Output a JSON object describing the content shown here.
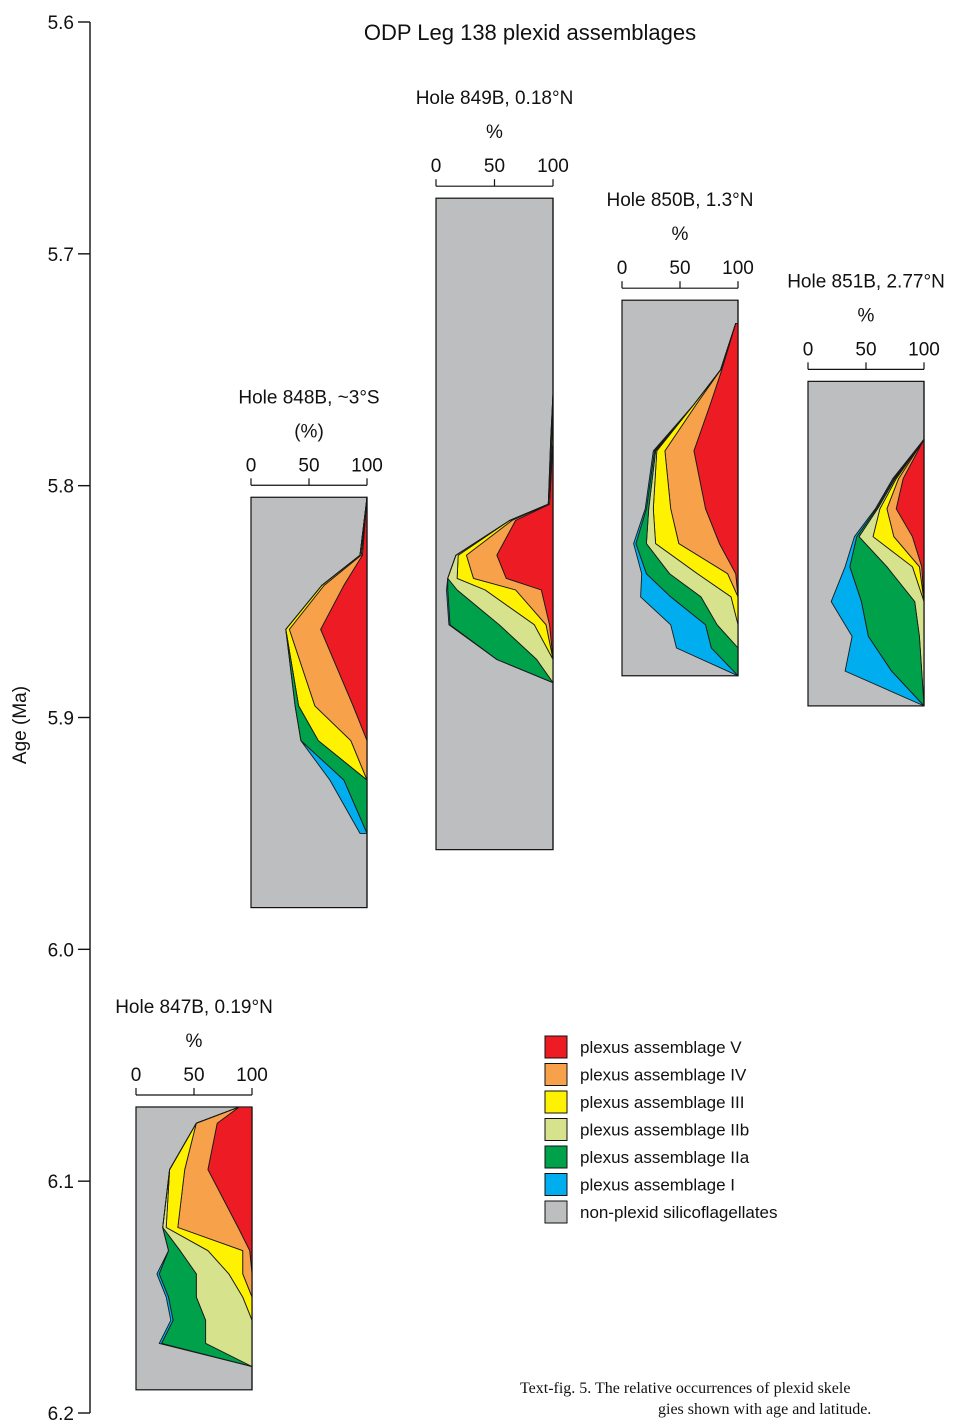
{
  "chart_data": {
    "type": "area",
    "title": "ODP Leg 138 plexid assemblages",
    "ylabel": "Age (Ma)",
    "ylim": [
      5.6,
      6.2
    ],
    "yticks": [
      "5.6",
      "5.7",
      "5.8",
      "5.9",
      "6.0",
      "6.1",
      "6.2"
    ],
    "grid": false,
    "legend_position": "bottom-right",
    "colors": {
      "V": "#ed1c24",
      "IV": "#f7a24b",
      "III": "#fff200",
      "IIb": "#d6e38c",
      "IIa": "#00a14b",
      "I": "#00aeef",
      "non": "#bcbec0"
    },
    "legend": [
      {
        "key": "V",
        "label": "plexus assemblage V"
      },
      {
        "key": "IV",
        "label": "plexus assemblage IV"
      },
      {
        "key": "III",
        "label": "plexus assemblage III"
      },
      {
        "key": "IIb",
        "label": "plexus assemblage IIb"
      },
      {
        "key": "IIa",
        "label": "plexus assemblage IIa"
      },
      {
        "key": "I",
        "label": "plexus assemblage I"
      },
      {
        "key": "non",
        "label": "non-plexid silicoflagellates"
      }
    ],
    "order": [
      "V",
      "IV",
      "III",
      "IIb",
      "IIa",
      "I"
    ],
    "panels": [
      {
        "name": "Hole 848B, ~3°S",
        "unit": "(%)",
        "xticks": [
          "0",
          "50",
          "100"
        ],
        "age_range": [
          5.805,
          5.982
        ],
        "ages": [
          5.805,
          5.83,
          5.843,
          5.862,
          5.895,
          5.91,
          5.927,
          5.95
        ],
        "V": [
          0,
          4,
          20,
          40,
          12,
          0,
          0,
          0
        ],
        "IV": [
          0,
          1,
          17,
          27,
          33,
          14,
          0,
          0
        ],
        "III": [
          0,
          1,
          2,
          3,
          14,
          28,
          0,
          0
        ],
        "IIb": [
          0,
          0,
          0,
          0,
          0,
          0,
          0,
          0
        ],
        "IIa": [
          0,
          0,
          0,
          0,
          3,
          15,
          20,
          0
        ],
        "I": [
          0,
          0,
          0,
          0,
          0,
          0,
          12,
          6
        ]
      },
      {
        "name": "Hole 849B, 0.18°N",
        "unit": "%",
        "xticks": [
          "0",
          "50",
          "100"
        ],
        "age_range": [
          5.676,
          5.957
        ],
        "ages": [
          5.76,
          5.78,
          5.808,
          5.815,
          5.83,
          5.84,
          5.845,
          5.86,
          5.875,
          5.885
        ],
        "V": [
          0,
          0,
          3,
          32,
          48,
          40,
          10,
          3,
          0,
          0
        ],
        "IV": [
          0,
          0,
          1,
          3,
          26,
          28,
          22,
          3,
          0,
          0
        ],
        "III": [
          0,
          1,
          0,
          2,
          7,
          14,
          26,
          10,
          0,
          0
        ],
        "IIb": [
          0,
          0,
          0,
          0,
          2,
          8,
          24,
          30,
          14,
          0
        ],
        "IIa": [
          0,
          1,
          0,
          0,
          0,
          0,
          8,
          42,
          34,
          0
        ],
        "I": [
          0,
          0,
          0,
          0,
          0,
          0,
          1,
          1,
          0,
          0
        ]
      },
      {
        "name": "Hole 850B, 1.3°N",
        "unit": "%",
        "xticks": [
          "0",
          "50",
          "100"
        ],
        "age_range": [
          5.72,
          5.882
        ],
        "ages": [
          5.73,
          5.75,
          5.765,
          5.785,
          5.81,
          5.825,
          5.838,
          5.848,
          5.86,
          5.87,
          5.882
        ],
        "V": [
          2,
          14,
          24,
          38,
          28,
          16,
          2,
          0,
          0,
          0,
          0
        ],
        "IV": [
          0,
          1,
          12,
          25,
          30,
          35,
          7,
          0,
          0,
          0,
          0
        ],
        "III": [
          0,
          0,
          2,
          7,
          15,
          20,
          26,
          6,
          0,
          0,
          0
        ],
        "IIb": [
          0,
          0,
          0,
          1,
          4,
          8,
          24,
          26,
          18,
          0,
          0
        ],
        "IIa": [
          0,
          0,
          0,
          1,
          2,
          9,
          20,
          26,
          10,
          23,
          0
        ],
        "I": [
          0,
          0,
          0,
          1,
          1,
          2,
          4,
          26,
          30,
          30,
          0
        ]
      },
      {
        "name": "Hole 851B, 2.77°N",
        "unit": "%",
        "xticks": [
          "0",
          "50",
          "100"
        ],
        "age_range": [
          5.755,
          5.895
        ],
        "ages": [
          5.78,
          5.797,
          5.81,
          5.822,
          5.835,
          5.85,
          5.865,
          5.88,
          5.895
        ],
        "V": [
          0,
          18,
          24,
          10,
          2,
          0,
          0,
          0,
          0
        ],
        "IV": [
          0,
          4,
          8,
          16,
          2,
          0,
          0,
          0,
          0
        ],
        "III": [
          0,
          2,
          6,
          18,
          6,
          0,
          0,
          0,
          0
        ],
        "IIb": [
          0,
          1,
          2,
          12,
          22,
          8,
          4,
          2,
          0
        ],
        "IIa": [
          0,
          1,
          1,
          2,
          32,
          46,
          44,
          26,
          0
        ],
        "I": [
          0,
          1,
          1,
          2,
          4,
          26,
          14,
          40,
          0
        ]
      },
      {
        "name": "Hole 847B, 0.19°N",
        "unit": "%",
        "xticks": [
          "0",
          "50",
          "100"
        ],
        "age_range": [
          6.068,
          6.19
        ],
        "ages": [
          6.068,
          6.075,
          6.095,
          6.12,
          6.13,
          6.14,
          6.15,
          6.16,
          6.17,
          6.18,
          6.19
        ],
        "V": [
          11,
          30,
          38,
          12,
          2,
          0,
          0,
          0,
          0,
          0,
          0
        ],
        "IV": [
          0,
          18,
          20,
          52,
          6,
          8,
          0,
          0,
          0,
          0,
          0
        ],
        "III": [
          0,
          0,
          13,
          10,
          30,
          12,
          8,
          0,
          0,
          0,
          0
        ],
        "IIb": [
          0,
          0,
          0,
          3,
          24,
          28,
          40,
          40,
          40,
          0,
          0
        ],
        "IIa": [
          0,
          0,
          0,
          0,
          10,
          32,
          24,
          28,
          38,
          0,
          0
        ],
        "I": [
          0,
          0,
          0,
          0,
          0,
          2,
          2,
          2,
          2,
          0,
          0
        ]
      }
    ]
  },
  "caption": {
    "line1": "Text-fig. 5. The relative occurrences of plexid skele",
    "line2": "gies shown with age and latitude."
  }
}
